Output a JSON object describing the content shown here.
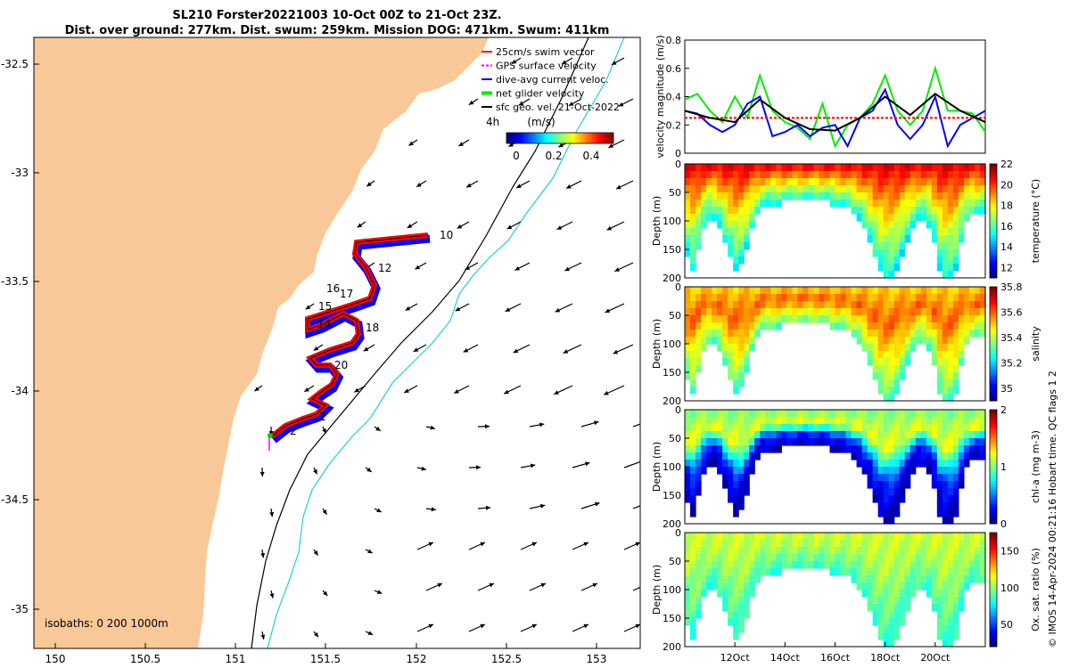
{
  "title": {
    "line1": "SL210 Forster20221003 10-Oct 00Z to 21-Oct 23Z.",
    "line2": "Dist. over ground: 277km. Dist. swum: 259km. Mission DOG: 471km. Swum: 411km"
  },
  "map": {
    "legend": [
      {
        "label": "25cm/s swim vector",
        "color": "#ff0000"
      },
      {
        "label": "GPS surface velocity",
        "color": "#ff00ff"
      },
      {
        "label": "dive-avg current veloc.",
        "color": "#0000ff"
      },
      {
        "label": "net glider velocity",
        "color": "#00ee00"
      },
      {
        "label": "sfc geo. vel. 21-Oct-2022",
        "color": "#000000"
      }
    ],
    "colorbar_title": "(m/s)",
    "colorbar_ticks": [
      "0",
      "0.2",
      "0.4"
    ],
    "corner_label": "4h",
    "isobaths_label": "isobaths: 0   200  1000m",
    "xticks": [
      "150",
      "150.5",
      "151",
      "151.5",
      "152",
      "152.5",
      "153"
    ],
    "yticks": [
      "-32.5",
      "-33",
      "-33.5",
      "-34",
      "-34.5",
      "-35"
    ],
    "day_labels": [
      "10",
      "12",
      "16",
      "17",
      "15",
      "14",
      "18",
      "20",
      "1",
      "2"
    ],
    "land_color": "#f9c898"
  },
  "chart_data": [
    {
      "type": "line",
      "ylabel": "velocity magnitude (m/s)",
      "yticks": [
        "0",
        "0.2",
        "0.4",
        "0.6",
        "0.8"
      ],
      "ylim": [
        0,
        0.8
      ],
      "xlim_day": [
        10,
        22
      ],
      "series": [
        {
          "color": "#00ee00",
          "x": [
            10.0,
            10.5,
            11.0,
            11.5,
            12.0,
            12.5,
            13.0,
            13.5,
            14.0,
            14.5,
            15.0,
            15.5,
            16.0,
            16.5,
            17.0,
            17.5,
            18.0,
            18.5,
            19.0,
            19.5,
            20.0,
            20.5,
            21.0,
            21.5,
            22.0
          ],
          "y": [
            0.38,
            0.42,
            0.3,
            0.22,
            0.4,
            0.25,
            0.55,
            0.3,
            0.22,
            0.18,
            0.1,
            0.35,
            0.05,
            0.2,
            0.25,
            0.35,
            0.55,
            0.3,
            0.2,
            0.3,
            0.6,
            0.3,
            0.3,
            0.28,
            0.15
          ]
        },
        {
          "color": "#0000ff",
          "x": [
            10.0,
            10.5,
            11.0,
            11.5,
            12.0,
            12.5,
            13.0,
            13.5,
            14.0,
            14.5,
            15.0,
            15.5,
            16.0,
            16.5,
            17.0,
            17.5,
            18.0,
            18.5,
            19.0,
            19.5,
            20.0,
            20.5,
            21.0,
            21.5,
            22.0
          ],
          "y": [
            0.3,
            0.28,
            0.2,
            0.15,
            0.2,
            0.35,
            0.4,
            0.12,
            0.15,
            0.2,
            0.12,
            0.18,
            0.2,
            0.05,
            0.25,
            0.3,
            0.45,
            0.2,
            0.1,
            0.2,
            0.4,
            0.05,
            0.2,
            0.25,
            0.3
          ]
        },
        {
          "color": "#ff0000",
          "dashed": true,
          "x": [
            10.0,
            22.0
          ],
          "y": [
            0.25,
            0.25
          ]
        },
        {
          "color": "#000000",
          "x": [
            10.0,
            11.0,
            12.0,
            13.0,
            14.0,
            15.0,
            16.0,
            17.0,
            18.0,
            19.0,
            20.0,
            21.0,
            22.0
          ],
          "y": [
            0.3,
            0.25,
            0.22,
            0.38,
            0.25,
            0.17,
            0.16,
            0.25,
            0.4,
            0.27,
            0.42,
            0.3,
            0.22
          ]
        }
      ]
    },
    {
      "type": "heatmap",
      "variable": "temperature",
      "ylabel": "Depth (m)",
      "clabel": "temperature (°C)",
      "yticks": [
        "0",
        "50",
        "100",
        "150",
        "200"
      ],
      "cticks": [
        "12",
        "14",
        "16",
        "18",
        "20",
        "22"
      ],
      "clim": [
        11,
        22
      ],
      "values_surface_to_bottom": [
        21,
        19,
        17,
        15
      ]
    },
    {
      "type": "heatmap",
      "variable": "salinity",
      "ylabel": "Depth (m)",
      "clabel": "salinity",
      "yticks": [
        "0",
        "50",
        "100",
        "150",
        "200"
      ],
      "cticks": [
        "35",
        "35.2",
        "35.4",
        "35.6",
        "35.8"
      ],
      "clim": [
        34.9,
        35.8
      ],
      "values_surface_to_bottom": [
        35.5,
        35.6,
        35.45,
        35.3
      ]
    },
    {
      "type": "heatmap",
      "variable": "chl-a",
      "ylabel": "Depth (m)",
      "clabel": "chl-a (mg m-3)",
      "yticks": [
        "0",
        "50",
        "100",
        "150",
        "200"
      ],
      "cticks": [
        "0",
        "1",
        "2"
      ],
      "clim": [
        0,
        2
      ],
      "values_surface_to_bottom": [
        1.0,
        1.2,
        0.3,
        0.1
      ]
    },
    {
      "type": "heatmap",
      "variable": "oxygen",
      "ylabel": "Depth (m)",
      "clabel": "Ox. sat. ratio (%)",
      "yticks": [
        "0",
        "50",
        "100",
        "150",
        "200"
      ],
      "cticks": [
        "50",
        "100",
        "150"
      ],
      "clim": [
        20,
        175
      ],
      "values_surface_to_bottom": [
        110,
        105,
        95,
        85
      ],
      "xticks": [
        "12Oct",
        "14Oct",
        "16Oct",
        "18Oct",
        "20Oct"
      ]
    }
  ],
  "sidebar_note": "© IMOS 14-Apr-2024 00:21:16 Hobart time. QC flags 1  2"
}
